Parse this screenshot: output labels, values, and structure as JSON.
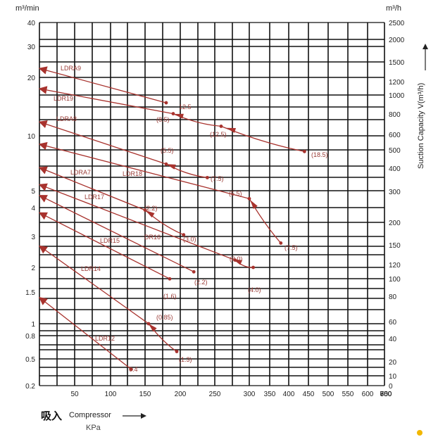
{
  "labels": {
    "y_left_unit": "m³/min",
    "y_right_unit": "m³/h",
    "y_right_title": "Suction Capacity V(m³/h)",
    "x_title_cn": "吸入",
    "x_title_en": "Compressor",
    "x_unit": "KPa"
  },
  "colors": {
    "curve": "#a8322d",
    "grid": "#000000",
    "text": "#222222",
    "label": "#9a3b36"
  },
  "chart_data": {
    "type": "line",
    "x_ticks": [
      50,
      100,
      150,
      200,
      250,
      300,
      350,
      400,
      450,
      500,
      550,
      600,
      650,
      700,
      750,
      800
    ],
    "y_left_ticks": [
      "40",
      "30",
      "20",
      "10",
      "5",
      "4",
      "3",
      "2",
      "1.5",
      "1",
      "0.8",
      "0.5",
      "0.2"
    ],
    "y_right_ticks": [
      "2500",
      "2000",
      "1500",
      "1200",
      "1000",
      "800",
      "600",
      "500",
      "400",
      "300",
      "200",
      "150",
      "120",
      "100",
      "80",
      "60",
      "40",
      "20",
      "10",
      "0"
    ],
    "series": [
      {
        "name": "LDRA9",
        "points": [
          [
            0,
            22.5
          ],
          [
            180,
            14.8
          ]
        ],
        "labels": [
          "12.5"
        ]
      },
      {
        "name": "LDR19",
        "points": [
          [
            0,
            17.5
          ],
          [
            190,
            13
          ],
          [
            260,
            11.2
          ],
          [
            440,
            8.2
          ]
        ],
        "labels": [
          "(8.5)",
          "(12.5)",
          "(18.5)"
        ]
      },
      {
        "name": "LDRA8",
        "points": [
          [
            0,
            11.8
          ],
          [
            180,
            7.0
          ],
          [
            240,
            5.9
          ]
        ],
        "labels": [
          "(5.5)",
          "(7.5)"
        ]
      },
      {
        "name": "LDR18",
        "points": [
          [
            0,
            9.0
          ],
          [
            300,
            4.5
          ],
          [
            380,
            2.75
          ]
        ],
        "labels": [
          "(5.5)",
          "(7.5)"
        ]
      },
      {
        "name": "LDRA7",
        "points": [
          [
            0,
            6.7
          ],
          [
            150,
            3.9
          ],
          [
            205,
            3.05
          ]
        ],
        "labels": [
          "(2.2)",
          "(3.0)"
        ]
      },
      {
        "name": "LDR17",
        "points": [
          [
            0,
            5.4
          ],
          [
            280,
            2.2
          ],
          [
            310,
            2.0
          ]
        ],
        "labels": [
          "(3.0)",
          "(4.0)"
        ]
      },
      {
        "name": "DR16",
        "points": [
          [
            0,
            4.7
          ],
          [
            220,
            1.9
          ]
        ],
        "labels": [
          "(2.2)"
        ]
      },
      {
        "name": "LDR15",
        "points": [
          [
            0,
            3.8
          ],
          [
            185,
            1.75
          ]
        ],
        "labels": [
          "(1.6)"
        ]
      },
      {
        "name": "LDR14",
        "points": [
          [
            0,
            2.65
          ],
          [
            155,
            1.0
          ],
          [
            195,
            0.58
          ]
        ],
        "labels": [
          "(0.85)",
          "(1.3)"
        ]
      },
      {
        "name": "LDR12",
        "points": [
          [
            0,
            1.4
          ],
          [
            130,
            0.35
          ]
        ],
        "labels": [
          "0.4"
        ]
      }
    ]
  }
}
